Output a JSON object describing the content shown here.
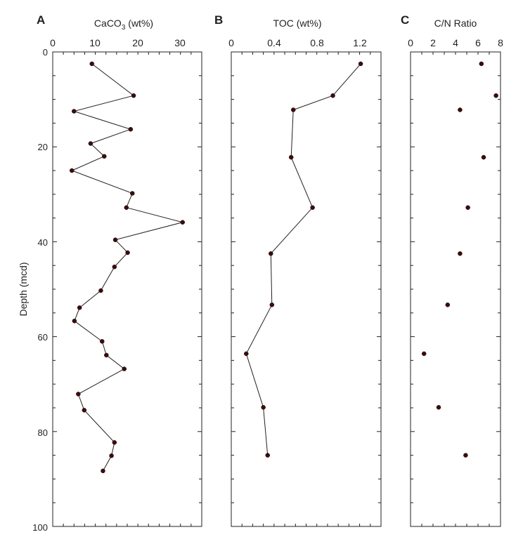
{
  "y_axis": {
    "label": "Depth (mcd)",
    "range": [
      0,
      100
    ],
    "tick_labels": [
      "0",
      "20",
      "40",
      "60",
      "80",
      "100"
    ]
  },
  "chart_data": [
    {
      "type": "line",
      "panel": "A",
      "title": "",
      "xlabel_main": "CaCO",
      "xlabel_sub": "3",
      "xlabel_suffix": " (wt%)",
      "x_tick_labels": [
        "0",
        "10",
        "20",
        "30"
      ],
      "xlim": [
        0,
        35
      ],
      "ylim": [
        0,
        100
      ],
      "ylabel": "Depth (mcd)",
      "y_inverted": true,
      "grid": false,
      "series": [
        {
          "x": [
            9.2,
            19.0,
            5.0,
            18.3,
            8.9,
            12.1,
            4.5,
            18.7,
            17.3,
            30.5,
            14.7,
            17.6,
            14.5,
            11.3,
            6.3,
            5.1,
            11.6,
            12.6,
            16.8,
            6.0,
            7.4,
            14.5,
            13.8,
            11.8
          ],
          "y": [
            2.5,
            9.2,
            12.5,
            16.3,
            19.3,
            22.0,
            25.0,
            29.8,
            32.8,
            35.9,
            39.6,
            42.3,
            45.3,
            50.3,
            53.9,
            56.7,
            61.0,
            63.9,
            66.8,
            72.1,
            75.5,
            82.3,
            85.1,
            88.3
          ]
        }
      ]
    },
    {
      "type": "line",
      "panel": "B",
      "title": "",
      "xlabel": "TOC (wt%)",
      "x_tick_labels": [
        "0",
        "0.4",
        "0.8",
        "1.2"
      ],
      "xlim": [
        0,
        1.4
      ],
      "ylim": [
        0,
        100
      ],
      "y_inverted": true,
      "grid": false,
      "series": [
        {
          "x": [
            1.21,
            0.95,
            0.58,
            0.56,
            0.76,
            0.37,
            0.38,
            0.14,
            0.3,
            0.34
          ],
          "y": [
            2.5,
            9.2,
            12.2,
            22.2,
            32.8,
            42.5,
            53.3,
            63.6,
            74.9,
            85.0
          ]
        }
      ]
    },
    {
      "type": "scatter",
      "panel": "C",
      "title": "",
      "xlabel": "C/N Ratio",
      "x_tick_labels": [
        "0",
        "2",
        "4",
        "6",
        "8"
      ],
      "xlim": [
        0,
        8
      ],
      "ylim": [
        0,
        100
      ],
      "y_inverted": true,
      "grid": false,
      "series": [
        {
          "x": [
            6.3,
            7.6,
            4.4,
            6.5,
            5.1,
            4.4,
            3.3,
            1.2,
            2.5,
            4.9
          ],
          "y": [
            2.5,
            9.2,
            12.2,
            22.2,
            32.8,
            42.5,
            53.3,
            63.6,
            74.9,
            85.0
          ]
        }
      ]
    }
  ]
}
